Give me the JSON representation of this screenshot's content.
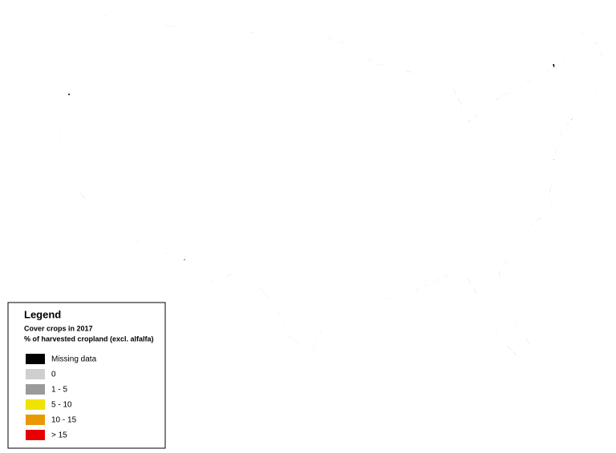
{
  "legend": {
    "title": "Legend",
    "subtitle": "Cover crops in 2017",
    "description": "% of harvested cropland (excl. alfalfa)",
    "items": [
      {
        "label": "Missing data",
        "color": "#000000"
      },
      {
        "label": "0",
        "color": "#cfcfcf"
      },
      {
        "label": "1 - 5",
        "color": "#9a9a9a"
      },
      {
        "label": "5 - 10",
        "color": "#efe300"
      },
      {
        "label": "10 - 15",
        "color": "#e89800"
      },
      {
        "label": "> 15",
        "color": "#e60000"
      }
    ]
  }
}
